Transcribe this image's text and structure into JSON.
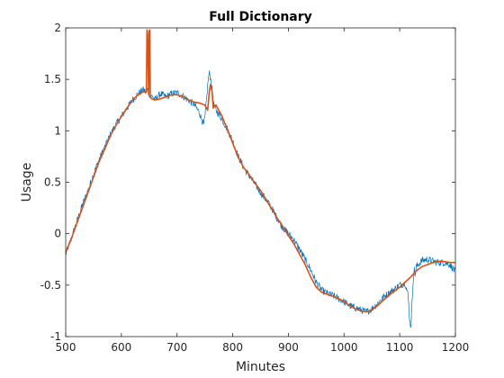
{
  "chart_data": {
    "type": "line",
    "title": "Full Dictionary",
    "xlabel": "Minutes",
    "ylabel": "Usage",
    "xlim": [
      500,
      1200
    ],
    "ylim": [
      -1,
      2
    ],
    "xticks": [
      500,
      600,
      700,
      800,
      900,
      1000,
      1100,
      1200
    ],
    "xtick_labels": [
      "500",
      "600",
      "700",
      "800",
      "900",
      "1000",
      "1100",
      "1200"
    ],
    "yticks": [
      -1,
      -0.5,
      0,
      0.5,
      1,
      1.5,
      2
    ],
    "ytick_labels": [
      "-1",
      "-0.5",
      "0",
      "0.5",
      "1",
      "1.5",
      "2"
    ],
    "grid": false,
    "legend": "none",
    "series": [
      {
        "color": "#0072BD",
        "style": "noisy",
        "x": [
          500,
          510,
          520,
          530,
          540,
          550,
          560,
          570,
          580,
          590,
          600,
          610,
          620,
          630,
          640,
          645,
          648,
          650,
          653,
          656,
          660,
          670,
          680,
          690,
          700,
          710,
          720,
          730,
          740,
          745,
          748,
          750,
          753,
          756,
          758,
          760,
          763,
          766,
          770,
          780,
          790,
          800,
          810,
          820,
          830,
          840,
          850,
          860,
          870,
          880,
          890,
          900,
          910,
          920,
          930,
          940,
          950,
          960,
          970,
          980,
          990,
          1000,
          1010,
          1020,
          1030,
          1040,
          1050,
          1060,
          1070,
          1080,
          1090,
          1100,
          1110,
          1115,
          1118,
          1120,
          1122,
          1124,
          1126,
          1128,
          1130,
          1140,
          1150,
          1160,
          1170,
          1180,
          1190,
          1200
        ],
        "y": [
          -0.2,
          -0.05,
          0.12,
          0.28,
          0.42,
          0.58,
          0.72,
          0.84,
          0.96,
          1.06,
          1.14,
          1.22,
          1.3,
          1.36,
          1.4,
          1.36,
          1.42,
          1.36,
          1.33,
          1.34,
          1.3,
          1.36,
          1.33,
          1.36,
          1.37,
          1.34,
          1.3,
          1.26,
          1.18,
          1.1,
          1.06,
          1.12,
          1.3,
          1.5,
          1.56,
          1.52,
          1.4,
          1.25,
          1.2,
          1.12,
          1.02,
          0.9,
          0.75,
          0.64,
          0.56,
          0.48,
          0.4,
          0.33,
          0.25,
          0.15,
          0.06,
          0.0,
          -0.06,
          -0.15,
          -0.25,
          -0.35,
          -0.47,
          -0.55,
          -0.58,
          -0.6,
          -0.63,
          -0.66,
          -0.7,
          -0.72,
          -0.74,
          -0.76,
          -0.73,
          -0.68,
          -0.62,
          -0.58,
          -0.54,
          -0.5,
          -0.48,
          -0.6,
          -0.85,
          -0.9,
          -0.7,
          -0.45,
          -0.35,
          -0.4,
          -0.32,
          -0.26,
          -0.25,
          -0.27,
          -0.28,
          -0.28,
          -0.3,
          -0.37
        ]
      },
      {
        "color": "#D95319",
        "style": "smooth",
        "x": [
          500,
          510,
          520,
          530,
          540,
          550,
          560,
          570,
          580,
          590,
          600,
          610,
          620,
          630,
          640,
          645,
          646,
          647,
          649,
          650,
          651,
          652,
          653,
          655,
          660,
          670,
          680,
          690,
          700,
          710,
          720,
          730,
          740,
          750,
          755,
          758,
          760,
          763,
          765,
          768,
          770,
          780,
          790,
          800,
          810,
          820,
          830,
          840,
          850,
          860,
          870,
          880,
          890,
          900,
          910,
          920,
          930,
          940,
          950,
          960,
          970,
          980,
          990,
          1000,
          1010,
          1020,
          1030,
          1040,
          1050,
          1060,
          1070,
          1080,
          1090,
          1100,
          1110,
          1120,
          1130,
          1140,
          1150,
          1160,
          1170,
          1180,
          1190,
          1200
        ],
        "y": [
          -0.18,
          -0.05,
          0.1,
          0.25,
          0.4,
          0.55,
          0.7,
          0.82,
          0.95,
          1.05,
          1.14,
          1.22,
          1.3,
          1.35,
          1.38,
          1.38,
          1.98,
          1.95,
          1.35,
          1.97,
          1.98,
          1.34,
          1.32,
          1.31,
          1.3,
          1.31,
          1.33,
          1.35,
          1.35,
          1.33,
          1.3,
          1.28,
          1.27,
          1.25,
          1.2,
          1.38,
          1.45,
          1.38,
          1.22,
          1.24,
          1.25,
          1.15,
          1.02,
          0.88,
          0.74,
          0.64,
          0.57,
          0.49,
          0.42,
          0.33,
          0.24,
          0.15,
          0.07,
          -0.02,
          -0.1,
          -0.2,
          -0.3,
          -0.42,
          -0.52,
          -0.57,
          -0.59,
          -0.61,
          -0.63,
          -0.66,
          -0.7,
          -0.73,
          -0.75,
          -0.76,
          -0.74,
          -0.7,
          -0.65,
          -0.6,
          -0.56,
          -0.52,
          -0.47,
          -0.42,
          -0.36,
          -0.32,
          -0.3,
          -0.28,
          -0.27,
          -0.27,
          -0.28,
          -0.28
        ]
      }
    ]
  }
}
